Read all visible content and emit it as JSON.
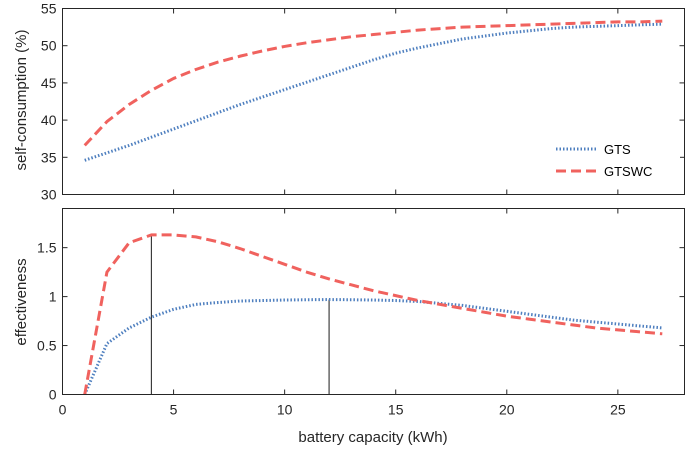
{
  "chart_data": [
    {
      "type": "line",
      "ylabel": "self-consumption (%)",
      "xlabel": "",
      "xlim": [
        0,
        28
      ],
      "ylim": [
        30,
        55
      ],
      "xticks": [
        "0",
        "5",
        "10",
        "15",
        "20",
        "25"
      ],
      "yticks": [
        "30",
        "35",
        "40",
        "45",
        "50",
        "55"
      ],
      "legend": {
        "position": "right-middle",
        "entries": [
          "GTS",
          "GTSWC"
        ]
      },
      "grid": false,
      "series": [
        {
          "name": "GTS",
          "style": "dotted",
          "color": "#4e7fbf",
          "x": [
            1,
            2,
            3,
            4,
            5,
            6,
            7,
            8,
            9,
            10,
            11,
            12,
            13,
            14,
            15,
            16,
            17,
            18,
            19,
            20,
            21,
            22,
            23,
            24,
            25,
            26,
            27
          ],
          "y": [
            34.6,
            35.6,
            36.6,
            37.7,
            38.8,
            39.9,
            41.0,
            42.1,
            43.1,
            44.1,
            45.1,
            46.1,
            47.1,
            48.1,
            49.0,
            49.7,
            50.3,
            50.9,
            51.3,
            51.7,
            52.0,
            52.3,
            52.5,
            52.6,
            52.7,
            52.8,
            52.9
          ]
        },
        {
          "name": "GTSWC",
          "style": "dashed",
          "color": "#f0625e",
          "x": [
            1,
            2,
            3,
            4,
            5,
            6,
            7,
            8,
            9,
            10,
            11,
            12,
            13,
            14,
            15,
            16,
            17,
            18,
            19,
            20,
            21,
            22,
            23,
            24,
            25,
            26,
            27
          ],
          "y": [
            36.6,
            39.8,
            42.1,
            44.0,
            45.6,
            46.8,
            47.8,
            48.6,
            49.3,
            49.9,
            50.4,
            50.8,
            51.2,
            51.5,
            51.8,
            52.1,
            52.3,
            52.5,
            52.6,
            52.7,
            52.8,
            52.9,
            53.0,
            53.1,
            53.2,
            53.2,
            53.3
          ]
        }
      ]
    },
    {
      "type": "line",
      "ylabel": "effectiveness",
      "xlabel": "battery capacity (kWh)",
      "xlim": [
        0,
        28
      ],
      "ylim": [
        0,
        1.9
      ],
      "xticks": [
        "0",
        "5",
        "10",
        "15",
        "20",
        "25"
      ],
      "yticks": [
        "0",
        "0.5",
        "1",
        "1.5"
      ],
      "grid": false,
      "series": [
        {
          "name": "GTS",
          "style": "dotted",
          "color": "#4e7fbf",
          "x": [
            1,
            2,
            3,
            4,
            5,
            6,
            7,
            8,
            9,
            10,
            11,
            12,
            13,
            14,
            15,
            16,
            17,
            18,
            19,
            20,
            21,
            22,
            23,
            24,
            25,
            26,
            27
          ],
          "y": [
            0.0,
            0.52,
            0.68,
            0.79,
            0.87,
            0.92,
            0.94,
            0.955,
            0.96,
            0.965,
            0.968,
            0.97,
            0.968,
            0.965,
            0.96,
            0.95,
            0.93,
            0.91,
            0.88,
            0.85,
            0.82,
            0.79,
            0.76,
            0.74,
            0.72,
            0.7,
            0.68
          ]
        },
        {
          "name": "GTSWC",
          "style": "dashed",
          "color": "#f0625e",
          "x": [
            1,
            2,
            3,
            4,
            5,
            6,
            7,
            8,
            9,
            10,
            11,
            12,
            13,
            14,
            15,
            16,
            17,
            18,
            19,
            20,
            21,
            22,
            23,
            24,
            25,
            26,
            27
          ],
          "y": [
            0.0,
            1.25,
            1.55,
            1.63,
            1.63,
            1.61,
            1.56,
            1.49,
            1.41,
            1.33,
            1.25,
            1.18,
            1.12,
            1.06,
            1.01,
            0.96,
            0.92,
            0.88,
            0.84,
            0.8,
            0.77,
            0.74,
            0.71,
            0.68,
            0.66,
            0.64,
            0.62
          ]
        }
      ],
      "markers": [
        {
          "x": 4,
          "y": 1.63
        },
        {
          "x": 12,
          "y": 0.97
        }
      ]
    }
  ]
}
